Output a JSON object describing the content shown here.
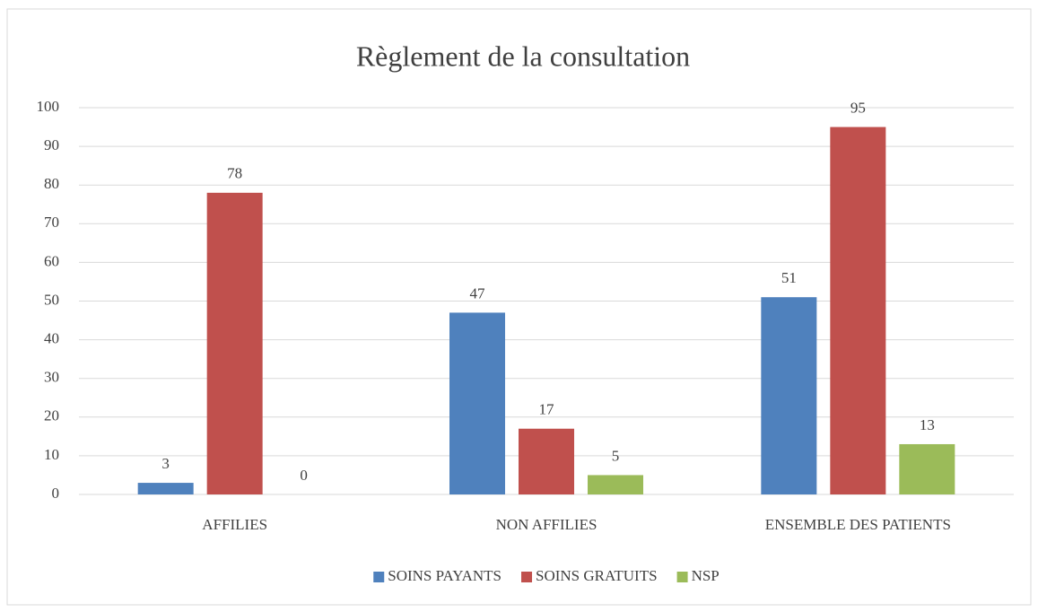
{
  "chart_data": {
    "type": "bar",
    "title": "Règlement de la consultation",
    "categories": [
      "AFFILIES",
      "NON AFFILIES",
      "ENSEMBLE DES PATIENTS"
    ],
    "series": [
      {
        "name": "SOINS PAYANTS",
        "color": "#4f81bd",
        "values": [
          3,
          47,
          51
        ]
      },
      {
        "name": "SOINS GRATUITS",
        "color": "#c0504d",
        "values": [
          78,
          17,
          95
        ]
      },
      {
        "name": "NSP",
        "color": "#9bbb59",
        "values": [
          0,
          5,
          13
        ]
      }
    ],
    "ylim": [
      0,
      100
    ],
    "yticks": [
      0,
      10,
      20,
      30,
      40,
      50,
      60,
      70,
      80,
      90,
      100
    ],
    "grid": true,
    "legend": "bottom",
    "data_labels": true
  }
}
